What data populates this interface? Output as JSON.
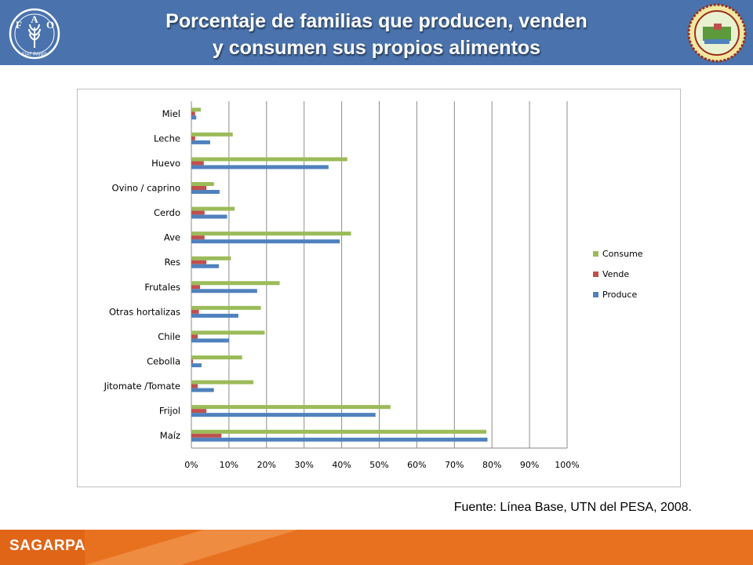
{
  "header": {
    "title_line1": "Porcentaje de familias que producen, venden",
    "title_line2": "y consumen sus propios alimentos"
  },
  "logos": {
    "left_letters": [
      "F",
      "A",
      "O"
    ],
    "left_motto": "FIAT PANIS"
  },
  "source": "Fuente: Línea Base, UTN del PESA, 2008.",
  "footer": {
    "brand": "SAGARPA"
  },
  "colors": {
    "header": "#4a73ad",
    "consume": "#9bbb59",
    "vende": "#c0504d",
    "produce": "#4f81bd",
    "footer_orange": "#e8711f"
  },
  "chart_data": {
    "type": "bar",
    "orientation": "horizontal",
    "categories": [
      "Miel",
      "Leche",
      "Huevo",
      "Ovino / caprino",
      "Cerdo",
      "Ave",
      "Res",
      "Frutales",
      "Otras hortalizas",
      "Chile",
      "Cebolla",
      "Jitomate /Tomate",
      "Frijol",
      "Maíz"
    ],
    "series": [
      {
        "name": "Consume",
        "values": [
          2.5,
          11,
          41.5,
          6,
          11.5,
          42.5,
          10.5,
          23.5,
          18.5,
          19.5,
          13.5,
          16.5,
          53,
          78.5
        ]
      },
      {
        "name": "Vende",
        "values": [
          1,
          1,
          3.3,
          4,
          3.5,
          3.5,
          4,
          2.3,
          2,
          1.7,
          0.4,
          1.7,
          4,
          8
        ]
      },
      {
        "name": "Produce",
        "values": [
          1.3,
          5,
          36.5,
          7.5,
          9.5,
          39.5,
          7.3,
          17.5,
          12.5,
          10,
          2.7,
          6,
          49,
          78.8
        ]
      }
    ],
    "x_ticks": [
      "0%",
      "10%",
      "20%",
      "30%",
      "40%",
      "50%",
      "60%",
      "70%",
      "80%",
      "90%",
      "100%"
    ],
    "xlim": [
      0,
      100
    ],
    "grid": "vertical",
    "legend_position": "right",
    "legend_order": [
      "Consume",
      "Vende",
      "Produce"
    ]
  }
}
